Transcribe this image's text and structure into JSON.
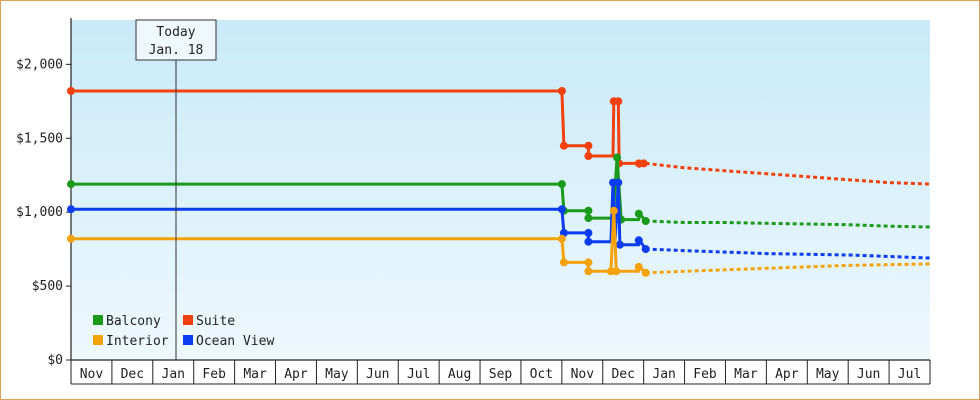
{
  "chart_data": {
    "type": "line",
    "today": {
      "label_line1": "Today",
      "label_line2": "Jan. 18",
      "x": 2.567
    },
    "y_ticks": [
      {
        "value": 0,
        "label": "$0"
      },
      {
        "value": 500,
        "label": "$500"
      },
      {
        "value": 1000,
        "label": "$1,000"
      },
      {
        "value": 1500,
        "label": "$1,500"
      },
      {
        "value": 2000,
        "label": "$2,000"
      }
    ],
    "ylim": [
      0,
      2300
    ],
    "xlim": [
      0,
      21
    ],
    "months": [
      "Nov",
      "Dec",
      "Jan",
      "Feb",
      "Mar",
      "Apr",
      "May",
      "Jun",
      "Jul",
      "Aug",
      "Sep",
      "Oct",
      "Nov",
      "Dec",
      "Jan",
      "Feb",
      "Mar",
      "Apr",
      "May",
      "Jun",
      "Jul"
    ],
    "legend": [
      {
        "name": "Balcony",
        "color": "#1a9a1a"
      },
      {
        "name": "Suite",
        "color": "#f2400e"
      },
      {
        "name": "Interior",
        "color": "#f4a20c"
      },
      {
        "name": "Ocean View",
        "color": "#0c3cf0"
      }
    ],
    "series": [
      {
        "name": "Suite",
        "color": "#f2400e",
        "actual": [
          [
            0,
            1820
          ],
          [
            12.0,
            1820
          ],
          [
            12.05,
            1450
          ],
          [
            12.65,
            1450
          ],
          [
            12.65,
            1380
          ],
          [
            13.25,
            1380
          ],
          [
            13.27,
            1750
          ],
          [
            13.38,
            1750
          ],
          [
            13.4,
            1330
          ],
          [
            13.88,
            1330
          ],
          [
            13.9,
            1310
          ],
          [
            14.0,
            1330
          ],
          [
            14.05,
            1330
          ]
        ],
        "actual_points": [
          [
            0,
            1820
          ],
          [
            12.0,
            1820
          ],
          [
            12.05,
            1450
          ],
          [
            12.65,
            1450
          ],
          [
            12.65,
            1380
          ],
          [
            13.27,
            1750
          ],
          [
            13.38,
            1750
          ],
          [
            13.4,
            1330
          ],
          [
            13.88,
            1330
          ],
          [
            14.0,
            1330
          ]
        ],
        "forecast": [
          [
            14.05,
            1330
          ],
          [
            15,
            1300
          ],
          [
            16,
            1280
          ],
          [
            17,
            1260
          ],
          [
            18,
            1240
          ],
          [
            19,
            1220
          ],
          [
            20,
            1200
          ],
          [
            21,
            1190
          ]
        ]
      },
      {
        "name": "Balcony",
        "color": "#1a9a1a",
        "actual": [
          [
            0,
            1190
          ],
          [
            12.0,
            1190
          ],
          [
            12.05,
            1010
          ],
          [
            12.65,
            1010
          ],
          [
            12.65,
            960
          ],
          [
            13.25,
            960
          ],
          [
            13.35,
            1370
          ],
          [
            13.45,
            950
          ],
          [
            13.88,
            950
          ],
          [
            13.9,
            990
          ],
          [
            14.05,
            940
          ]
        ],
        "actual_points": [
          [
            0,
            1190
          ],
          [
            12.0,
            1190
          ],
          [
            12.05,
            1010
          ],
          [
            12.65,
            1010
          ],
          [
            12.65,
            960
          ],
          [
            13.35,
            1370
          ],
          [
            13.45,
            950
          ],
          [
            13.88,
            990
          ],
          [
            14.05,
            940
          ]
        ],
        "forecast": [
          [
            14.05,
            940
          ],
          [
            15,
            930
          ],
          [
            16,
            930
          ],
          [
            17,
            925
          ],
          [
            18,
            920
          ],
          [
            19,
            915
          ],
          [
            20,
            905
          ],
          [
            21,
            900
          ]
        ]
      },
      {
        "name": "Ocean View",
        "color": "#0c3cf0",
        "actual": [
          [
            0,
            1020
          ],
          [
            12.0,
            1020
          ],
          [
            12.05,
            860
          ],
          [
            12.65,
            860
          ],
          [
            12.65,
            800
          ],
          [
            13.2,
            800
          ],
          [
            13.25,
            1200
          ],
          [
            13.3,
            800
          ],
          [
            13.38,
            1200
          ],
          [
            13.42,
            780
          ],
          [
            13.88,
            780
          ],
          [
            13.9,
            810
          ],
          [
            14.05,
            750
          ]
        ],
        "actual_points": [
          [
            0,
            1020
          ],
          [
            12.0,
            1020
          ],
          [
            12.05,
            860
          ],
          [
            12.65,
            860
          ],
          [
            12.65,
            800
          ],
          [
            13.25,
            1200
          ],
          [
            13.38,
            1200
          ],
          [
            13.42,
            780
          ],
          [
            13.88,
            810
          ],
          [
            14.05,
            750
          ]
        ],
        "forecast": [
          [
            14.05,
            750
          ],
          [
            15,
            740
          ],
          [
            16,
            730
          ],
          [
            17,
            720
          ],
          [
            18,
            715
          ],
          [
            19,
            710
          ],
          [
            20,
            700
          ],
          [
            21,
            690
          ]
        ]
      },
      {
        "name": "Interior",
        "color": "#f4a20c",
        "actual": [
          [
            0,
            820
          ],
          [
            12.0,
            820
          ],
          [
            12.05,
            660
          ],
          [
            12.65,
            660
          ],
          [
            12.65,
            600
          ],
          [
            13.2,
            600
          ],
          [
            13.27,
            1010
          ],
          [
            13.33,
            600
          ],
          [
            13.88,
            600
          ],
          [
            13.9,
            630
          ],
          [
            14.05,
            590
          ]
        ],
        "actual_points": [
          [
            0,
            820
          ],
          [
            12.0,
            820
          ],
          [
            12.05,
            660
          ],
          [
            12.65,
            660
          ],
          [
            12.65,
            600
          ],
          [
            13.2,
            600
          ],
          [
            13.27,
            1010
          ],
          [
            13.33,
            600
          ],
          [
            13.88,
            630
          ],
          [
            14.05,
            590
          ]
        ],
        "forecast": [
          [
            14.05,
            590
          ],
          [
            15,
            600
          ],
          [
            16,
            610
          ],
          [
            17,
            620
          ],
          [
            18,
            630
          ],
          [
            19,
            640
          ],
          [
            20,
            645
          ],
          [
            21,
            650
          ]
        ]
      }
    ]
  }
}
